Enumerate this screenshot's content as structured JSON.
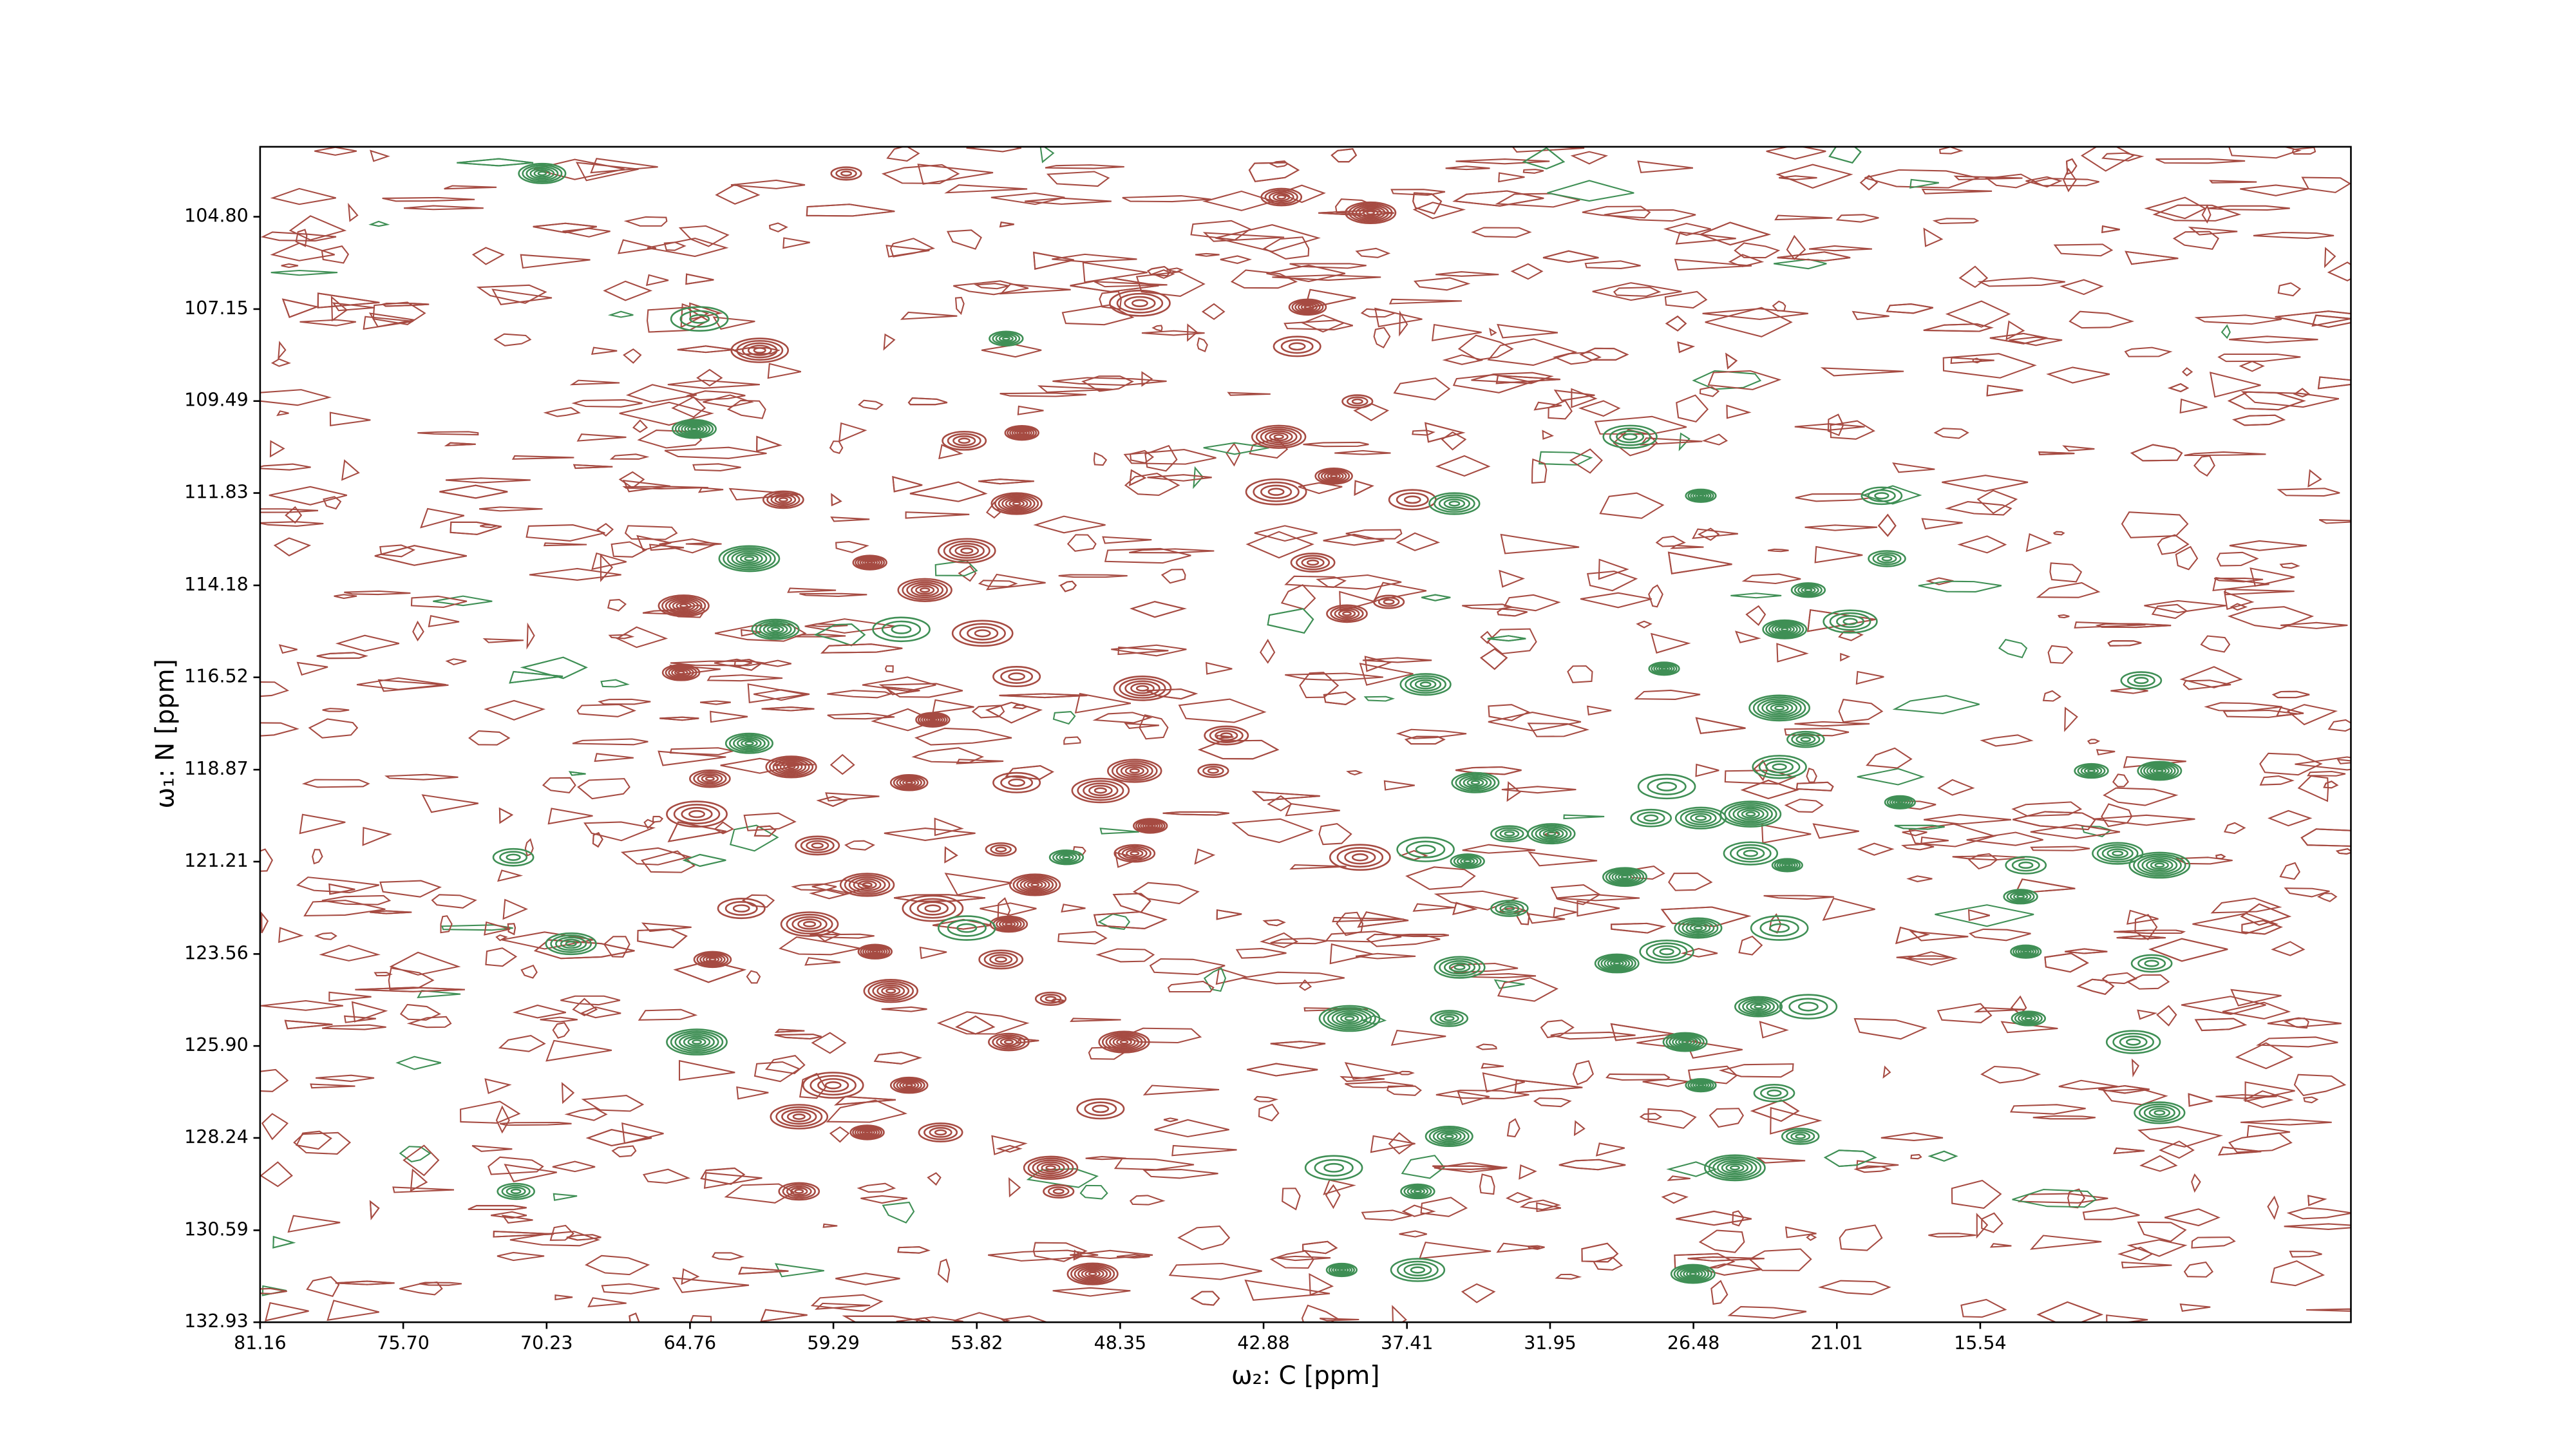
{
  "chart_data": {
    "type": "contour",
    "xlabel": "ω₂: C [ppm]",
    "ylabel": "ω₁: N [ppm]",
    "xlim": [
      81.16,
      1.4
    ],
    "ylim": [
      103.02,
      132.93
    ],
    "xticks": [
      81.16,
      {
        "value": 75.7,
        "label": "75.70"
      },
      70.23,
      64.76,
      59.29,
      53.82,
      48.35,
      42.88,
      37.41,
      31.95,
      26.48,
      21.01,
      15.54
    ],
    "yticks": [
      {
        "value": 104.8,
        "label": "104.80"
      },
      107.15,
      109.49,
      111.83,
      114.18,
      116.52,
      118.87,
      121.21,
      123.56,
      {
        "value": 125.9,
        "label": "125.90"
      },
      128.24,
      130.59,
      132.93
    ],
    "series": [
      {
        "color": "#a64b42",
        "x": [
          58.8,
          42.2,
          38.8,
          47.6,
          41.2,
          41.6,
          62.1,
          52.1,
          54.3,
          42.3,
          39.3,
          61.2,
          52.3,
          42.4,
          40.2,
          37.2,
          54.2,
          57.9,
          41.0,
          55.8,
          38.1,
          39.7,
          65.0,
          53.6,
          65.1,
          52.3,
          47.5,
          55.5,
          44.3,
          47.8,
          44.8,
          64.0,
          60.9,
          64.5,
          56.4,
          52.3,
          49.1,
          47.2,
          59.9,
          58.0,
          52.9,
          47.8,
          51.6,
          55.5,
          52.6,
          62.8,
          60.2,
          57.7,
          52.9,
          57.1,
          51.0,
          52.6,
          48.2,
          59.3,
          56.4,
          49.1,
          60.6,
          58.0,
          55.2,
          51.0,
          50.7,
          60.6,
          49.4,
          39.2,
          63.9
        ],
        "y": [
          103.7,
          104.3,
          104.7,
          107.0,
          107.1,
          108.1,
          108.2,
          110.3,
          110.5,
          110.4,
          109.5,
          112.0,
          112.1,
          111.8,
          111.4,
          112.0,
          113.3,
          113.6,
          113.6,
          114.3,
          114.6,
          114.9,
          114.7,
          115.4,
          116.4,
          116.5,
          116.8,
          117.6,
          118.0,
          118.9,
          118.9,
          119.1,
          118.8,
          120.0,
          119.2,
          119.2,
          119.4,
          120.3,
          120.8,
          121.8,
          120.9,
          121.0,
          121.8,
          122.4,
          122.8,
          122.4,
          122.8,
          123.5,
          123.7,
          124.5,
          124.7,
          125.8,
          125.8,
          126.9,
          126.9,
          127.5,
          127.7,
          128.1,
          128.1,
          129.0,
          129.6,
          129.6,
          131.7,
          121.1,
          123.7
        ]
      },
      {
        "color": "#3f8f55",
        "x": [
          70.4,
          64.4,
          52.7,
          64.6,
          28.9,
          26.2,
          19.3,
          35.6,
          62.5,
          19.1,
          61.5,
          56.7,
          22.1,
          23.0,
          20.5,
          27.6,
          9.4,
          36.7,
          23.2,
          22.2,
          34.8,
          27.5,
          11.3,
          8.7,
          23.2,
          18.6,
          28.1,
          26.2,
          24.3,
          33.5,
          31.9,
          36.7,
          35.1,
          29.1,
          24.3,
          22.9,
          13.8,
          10.3,
          8.7,
          33.5,
          26.3,
          23.2,
          14.0,
          29.4,
          27.5,
          13.8,
          9.0,
          35.4,
          39.6,
          35.8,
          24.0,
          22.1,
          13.7,
          26.8,
          9.7,
          26.2,
          23.4,
          8.7,
          24.9,
          22.4,
          35.8,
          40.2,
          37.0,
          26.5,
          37.0,
          39.9,
          71.5,
          69.3,
          64.5,
          71.4,
          62.5,
          54.2,
          50.4
        ],
        "y": [
          103.7,
          107.4,
          107.9,
          110.2,
          110.4,
          111.9,
          111.9,
          112.1,
          113.5,
          113.5,
          115.3,
          115.3,
          114.3,
          115.3,
          115.1,
          116.3,
          116.6,
          116.7,
          117.3,
          118.1,
          119.2,
          119.3,
          118.9,
          118.9,
          118.8,
          119.7,
          120.1,
          120.1,
          120.0,
          120.5,
          120.5,
          120.9,
          121.2,
          121.6,
          121.0,
          121.3,
          121.3,
          121.0,
          121.3,
          122.4,
          122.9,
          122.9,
          122.1,
          123.8,
          123.5,
          123.5,
          123.8,
          123.9,
          125.2,
          125.2,
          124.9,
          124.9,
          125.2,
          125.8,
          125.8,
          126.9,
          127.1,
          127.6,
          129.0,
          128.2,
          128.2,
          129.0,
          129.6,
          131.7,
          131.6,
          131.6,
          121.1,
          123.3,
          125.8,
          129.6,
          118.2,
          122.9,
          121.1
        ]
      }
    ]
  }
}
